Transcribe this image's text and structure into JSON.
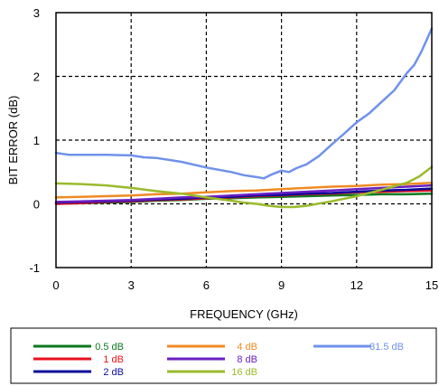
{
  "chart_data": {
    "type": "line",
    "xlabel": "FREQUENCY (GHz)",
    "ylabel": "BIT ERROR (dB)",
    "xlim": [
      0,
      15
    ],
    "ylim": [
      -1,
      3
    ],
    "xticks": [
      "0",
      "3",
      "6",
      "9",
      "12",
      "15"
    ],
    "yticks": [
      "-1",
      "0",
      "1",
      "2",
      "3"
    ],
    "grid": true,
    "legend_position": "bottom",
    "series": [
      {
        "name": "0.5 dB",
        "color": "#0a7a1e",
        "x": [
          0,
          1,
          2,
          3,
          4,
          5,
          6,
          7,
          8,
          9,
          10,
          11,
          12,
          13,
          14,
          15
        ],
        "y": [
          0.0,
          0.01,
          0.02,
          0.03,
          0.05,
          0.06,
          0.08,
          0.09,
          0.1,
          0.11,
          0.12,
          0.13,
          0.14,
          0.15,
          0.15,
          0.16
        ]
      },
      {
        "name": "1 dB",
        "color": "#e8101c",
        "x": [
          0,
          1,
          2,
          3,
          4,
          5,
          6,
          7,
          8,
          9,
          10,
          11,
          12,
          13,
          14,
          15
        ],
        "y": [
          0.0,
          0.01,
          0.03,
          0.04,
          0.06,
          0.07,
          0.09,
          0.1,
          0.12,
          0.13,
          0.15,
          0.16,
          0.18,
          0.19,
          0.2,
          0.21
        ]
      },
      {
        "name": "2 dB",
        "color": "#0a0a9a",
        "x": [
          0,
          1,
          2,
          3,
          4,
          5,
          6,
          7,
          8,
          9,
          10,
          11,
          12,
          13,
          14,
          15
        ],
        "y": [
          0.02,
          0.03,
          0.04,
          0.05,
          0.07,
          0.08,
          0.1,
          0.11,
          0.13,
          0.14,
          0.16,
          0.17,
          0.19,
          0.21,
          0.22,
          0.24
        ]
      },
      {
        "name": "4 dB",
        "color": "#f08a24",
        "x": [
          0,
          1,
          2,
          3,
          4,
          5,
          6,
          7,
          8,
          9,
          10,
          11,
          12,
          13,
          14,
          15
        ],
        "y": [
          0.1,
          0.11,
          0.12,
          0.13,
          0.15,
          0.16,
          0.18,
          0.2,
          0.21,
          0.23,
          0.25,
          0.27,
          0.28,
          0.3,
          0.31,
          0.33
        ]
      },
      {
        "name": "8 dB",
        "color": "#6a1fc0",
        "x": [
          0,
          1,
          2,
          3,
          4,
          5,
          6,
          7,
          8,
          9,
          10,
          11,
          12,
          13,
          14,
          15
        ],
        "y": [
          0.03,
          0.04,
          0.05,
          0.06,
          0.08,
          0.1,
          0.11,
          0.13,
          0.15,
          0.17,
          0.19,
          0.21,
          0.23,
          0.25,
          0.27,
          0.29
        ]
      },
      {
        "name": "16 dB",
        "color": "#9abb2c",
        "x": [
          0,
          1,
          2,
          3,
          4,
          5,
          6,
          7,
          7.5,
          8,
          8.5,
          9,
          9.5,
          10,
          11,
          12,
          13,
          14,
          14.5,
          15
        ],
        "y": [
          0.32,
          0.31,
          0.29,
          0.25,
          0.2,
          0.16,
          0.1,
          0.05,
          0.02,
          0.0,
          -0.03,
          -0.05,
          -0.05,
          -0.03,
          0.04,
          0.12,
          0.22,
          0.33,
          0.43,
          0.58
        ]
      },
      {
        "name": "31.5 dB",
        "color": "#6f92ea",
        "x": [
          0,
          0.5,
          1,
          2,
          3,
          3.5,
          4,
          5,
          6,
          7,
          7.5,
          8,
          8.3,
          8.6,
          9,
          9.3,
          9.6,
          10,
          10.5,
          11,
          11.5,
          12,
          12.5,
          13,
          13.5,
          14,
          14.3,
          14.6,
          15
        ],
        "y": [
          0.8,
          0.77,
          0.77,
          0.77,
          0.76,
          0.73,
          0.72,
          0.66,
          0.57,
          0.5,
          0.45,
          0.42,
          0.4,
          0.46,
          0.52,
          0.5,
          0.56,
          0.62,
          0.75,
          0.93,
          1.1,
          1.28,
          1.42,
          1.6,
          1.78,
          2.05,
          2.18,
          2.4,
          2.75
        ]
      }
    ]
  }
}
